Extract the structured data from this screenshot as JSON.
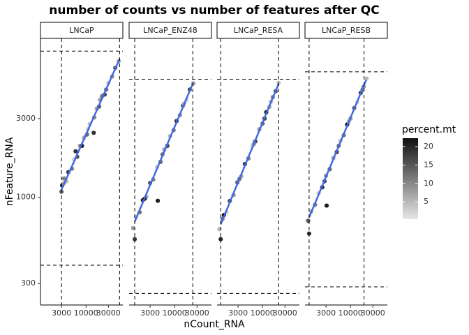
{
  "chart_data": {
    "type": "scatter",
    "title": "number of counts vs number of features after QC",
    "x_label": "nCount_RNA",
    "y_label": "nFeature_RNA",
    "xlog": true,
    "ylog": true,
    "xlim": [
      1070,
      61000
    ],
    "ylim": [
      222,
      9200
    ],
    "xticks": [
      3000,
      10000,
      30000
    ],
    "yticks": [
      300,
      1000,
      3000
    ],
    "point_color_low": "#e6e6e6",
    "point_color_high": "#111111",
    "trend_color": "#4169e1",
    "colorbar": {
      "title": "percent.mt",
      "lim": [
        0.3,
        22.3
      ],
      "ticks": [
        5,
        10,
        15,
        20
      ]
    },
    "facets": [
      {
        "name": "LNCaP",
        "x": [
          3000,
          3100,
          3300,
          3800,
          4200,
          5000,
          5600,
          6500,
          7500,
          8200,
          9000,
          10500,
          12000,
          14600,
          15000,
          17000,
          19000,
          22000,
          25000,
          30000,
          36000,
          42000,
          50000,
          3400,
          6000,
          11000,
          20000,
          27000
        ],
        "y": [
          1080,
          1180,
          1210,
          1250,
          1420,
          1490,
          1700,
          1760,
          2050,
          2050,
          2300,
          2400,
          2780,
          2460,
          3050,
          3450,
          3550,
          4100,
          4200,
          4950,
          5400,
          6100,
          6700,
          1300,
          1900,
          2600,
          3900,
          4500
        ],
        "percent_mt": [
          14,
          20,
          8,
          5,
          18,
          11,
          3,
          16,
          9,
          21,
          6,
          13,
          4,
          19,
          10,
          7,
          15,
          12,
          17,
          3,
          9,
          14,
          6,
          11,
          19,
          2,
          8,
          13
        ],
        "trend": {
          "x": [
            3000,
            52000
          ],
          "y": [
            1110,
            6900
          ]
        },
        "hlines": [
          7700,
          387
        ],
        "vlines": [
          3000,
          52000
        ]
      },
      {
        "name": "LNCaP_ENZ48",
        "x": [
          1300,
          1410,
          1500,
          1800,
          2100,
          2500,
          3000,
          3500,
          4200,
          4370,
          5000,
          6000,
          7000,
          8000,
          9500,
          11000,
          13000,
          15000,
          18000,
          21000,
          25000,
          2300,
          5500,
          16000
        ],
        "y": [
          650,
          557,
          760,
          810,
          960,
          1010,
          1220,
          1280,
          1530,
          952,
          1640,
          1950,
          2050,
          2350,
          2550,
          2900,
          3150,
          3600,
          3900,
          4500,
          4900,
          980,
          1820,
          3700
        ],
        "percent_mt": [
          8,
          18,
          4,
          12,
          20,
          6,
          15,
          10,
          3,
          21,
          13,
          7,
          17,
          5,
          11,
          19,
          9,
          14,
          2,
          16,
          8,
          22,
          12,
          6
        ],
        "trend": {
          "x": [
            1410,
            24400
          ],
          "y": [
            711,
            4890
          ]
        },
        "hlines": [
          5200,
          261
        ],
        "vlines": [
          1410,
          24400
        ]
      },
      {
        "name": "LNCaP_RESA",
        "x": [
          1200,
          1280,
          1400,
          1700,
          2000,
          2400,
          2900,
          3500,
          4200,
          5000,
          6000,
          7000,
          8500,
          10000,
          12000,
          14000,
          16500,
          19000,
          22000,
          1500,
          3200,
          6500,
          11000,
          15000
        ],
        "y": [
          640,
          557,
          740,
          810,
          950,
          1030,
          1230,
          1340,
          1590,
          1720,
          2040,
          2180,
          2580,
          2800,
          3280,
          3530,
          4050,
          4400,
          4950,
          780,
          1290,
          2100,
          3000,
          3800
        ],
        "percent_mt": [
          5,
          20,
          12,
          3,
          16,
          9,
          14,
          7,
          19,
          11,
          2,
          17,
          8,
          13,
          21,
          6,
          10,
          15,
          4,
          22,
          12,
          9,
          18,
          5
        ],
        "trend": {
          "x": [
            1280,
            22000
          ],
          "y": [
            684,
            4890
          ]
        },
        "hlines": [
          5200,
          261
        ],
        "vlines": [
          1280,
          22000
        ]
      },
      {
        "name": "LNCaP_RESB",
        "x": [
          1250,
          1310,
          1450,
          1750,
          2100,
          2500,
          3000,
          3100,
          3600,
          4300,
          5100,
          6100,
          7200,
          8500,
          10000,
          12000,
          14000,
          16500,
          19000,
          22000,
          2800,
          5600,
          9200,
          18000
        ],
        "y": [
          720,
          602,
          820,
          900,
          1060,
          1150,
          1350,
          890,
          1480,
          1730,
          1880,
          2200,
          2380,
          2760,
          3000,
          3480,
          3780,
          4300,
          4680,
          5250,
          1250,
          2050,
          2880,
          4500
        ],
        "percent_mt": [
          15,
          19,
          6,
          11,
          3,
          20,
          9,
          21,
          13,
          7,
          17,
          4,
          12,
          22,
          8,
          14,
          2,
          18,
          10,
          5,
          16,
          12,
          6,
          9
        ],
        "trend": {
          "x": [
            1310,
            21500
          ],
          "y": [
            754,
            5130
          ]
        },
        "hlines": [
          5770,
          286
        ],
        "vlines": [
          1310,
          19400
        ]
      }
    ]
  }
}
